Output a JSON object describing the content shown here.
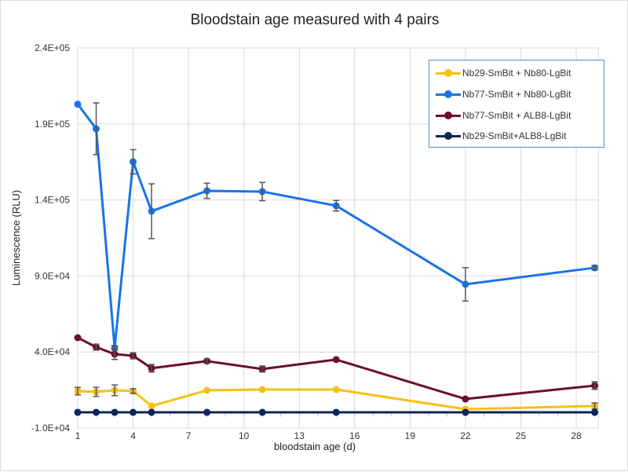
{
  "chart_data": {
    "type": "line",
    "title": "Bloodstain age measured with 4 pairs",
    "xlabel": "bloodstain age (d)",
    "ylabel": "Luminescence (RLU)",
    "xlim": [
      1,
      29.2
    ],
    "ylim": [
      -10000,
      240000
    ],
    "x_ticks": [
      1,
      4,
      7,
      10,
      13,
      16,
      19,
      22,
      25,
      28
    ],
    "y_ticks": [
      -10000,
      40000,
      90000,
      140000,
      190000,
      240000
    ],
    "y_tick_labels": [
      "-1.0E+04",
      "4.0E+04",
      "9.0E+04",
      "1.4E+05",
      "1.9E+05",
      "2.4E+05"
    ],
    "grid": true,
    "legend_position": "top-right",
    "x": [
      1,
      2,
      3,
      4,
      5,
      8,
      11,
      15,
      22,
      29
    ],
    "series": [
      {
        "name": "Nb29-SmBit + Nb80-LgBit",
        "color": "#f5c116",
        "values": [
          14300,
          13800,
          14800,
          14300,
          4500,
          14800,
          15300,
          15300,
          2400,
          4500
        ],
        "errors": [
          2500,
          3000,
          3500,
          1500,
          1000,
          1000,
          1000,
          1000,
          1000,
          2000
        ]
      },
      {
        "name": "Nb77-SmBit + Nb80-LgBit",
        "color": "#1a73e8",
        "values": [
          203000,
          186800,
          42700,
          165100,
          132600,
          146000,
          145500,
          136200,
          84500,
          95400
        ],
        "errors": [
          1000,
          17000,
          1500,
          8000,
          18000,
          5000,
          6000,
          3500,
          11000,
          1500
        ]
      },
      {
        "name": "Nb77-SmBit + ALB8-LgBit",
        "color": "#6b0f2a",
        "values": [
          49400,
          43200,
          38600,
          37500,
          29300,
          34000,
          28800,
          35000,
          9100,
          17900
        ],
        "errors": [
          1000,
          2000,
          3500,
          2000,
          2500,
          1500,
          2000,
          1000,
          1000,
          2500
        ]
      },
      {
        "name": "Nb29-SmBit+ALB8-LgBit",
        "color": "#0d2557",
        "values": [
          300,
          300,
          300,
          300,
          300,
          300,
          300,
          300,
          300,
          300
        ],
        "errors": [
          0,
          0,
          0,
          0,
          0,
          0,
          0,
          0,
          0,
          0
        ]
      }
    ]
  }
}
